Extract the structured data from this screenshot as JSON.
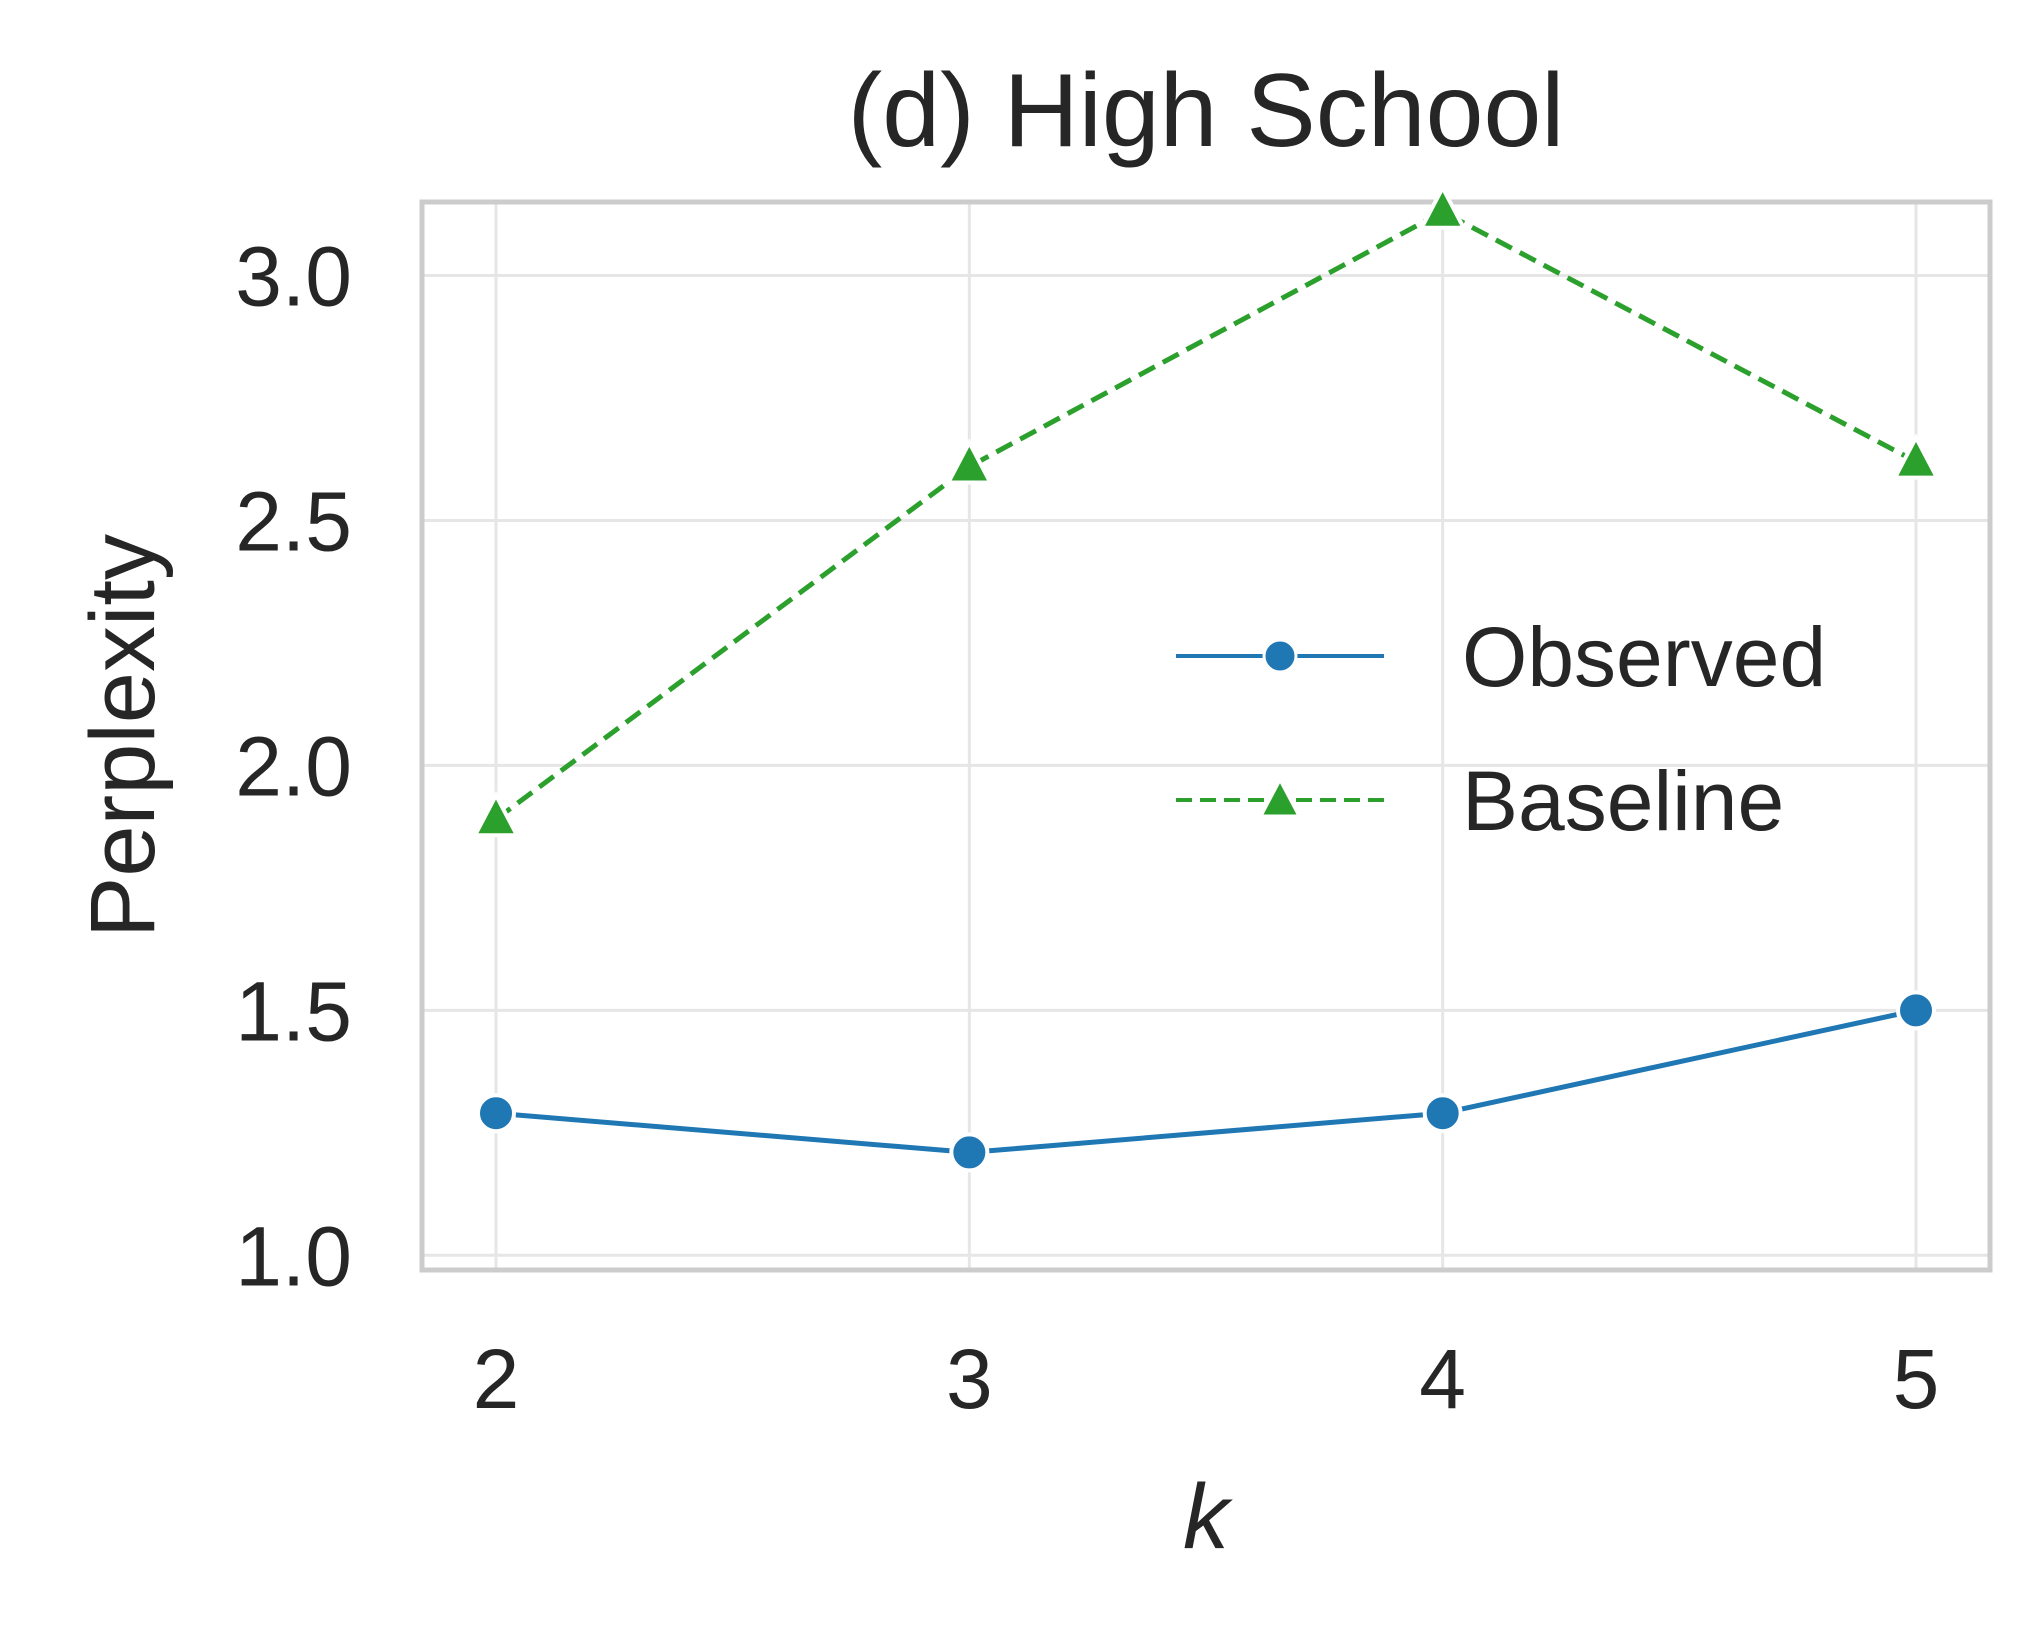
{
  "chart_data": {
    "type": "line",
    "title": "(d) High School",
    "xlabel": "k",
    "ylabel": "Perplexity",
    "x": [
      2,
      3,
      4,
      5
    ],
    "x_ticks": [
      "2",
      "3",
      "4",
      "5"
    ],
    "y_ticks": [
      "1.0",
      "1.5",
      "2.0",
      "2.5",
      "3.0"
    ],
    "ylim": [
      0.97,
      3.15
    ],
    "grid": true,
    "legend_position": "center-right",
    "series": [
      {
        "name": "Observed",
        "values": [
          1.29,
          1.21,
          1.29,
          1.5
        ],
        "color": "#1f77b4",
        "line_style": "solid",
        "marker": "circle"
      },
      {
        "name": "Baseline",
        "values": [
          1.89,
          2.61,
          3.13,
          2.62
        ],
        "color": "#2ca02c",
        "line_style": "dashed",
        "marker": "triangle"
      }
    ]
  }
}
